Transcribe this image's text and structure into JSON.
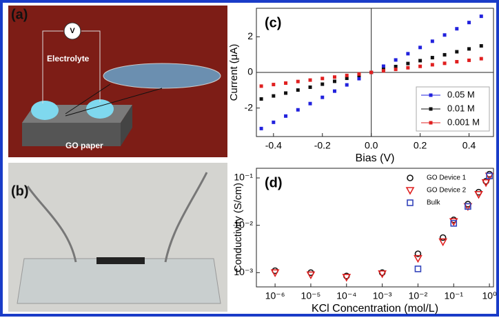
{
  "panels": {
    "a": {
      "label": "(a)",
      "voltmeter": "V",
      "electrolyte": "Electrolyte",
      "paper": "GO paper"
    },
    "b": {
      "label": "(b)"
    }
  },
  "chart_data": [
    {
      "type": "line",
      "annotation": "(c)",
      "x_label": "Bias (V)",
      "y_label": "Current (μA)",
      "x": [
        -0.45,
        -0.4,
        -0.35,
        -0.3,
        -0.25,
        -0.2,
        -0.15,
        -0.1,
        -0.05,
        0,
        0.05,
        0.1,
        0.15,
        0.2,
        0.25,
        0.3,
        0.35,
        0.4,
        0.45
      ],
      "series": [
        {
          "name": "0.05 M",
          "color": "#2222dd",
          "values": [
            -3.15,
            -2.8,
            -2.45,
            -2.1,
            -1.75,
            -1.4,
            -1.05,
            -0.7,
            -0.35,
            0,
            0.35,
            0.7,
            1.05,
            1.4,
            1.75,
            2.1,
            2.45,
            2.8,
            3.15
          ]
        },
        {
          "name": "0.01 M",
          "color": "#111111",
          "values": [
            -1.49,
            -1.32,
            -1.16,
            -0.99,
            -0.83,
            -0.66,
            -0.5,
            -0.33,
            -0.17,
            0,
            0.17,
            0.33,
            0.5,
            0.66,
            0.83,
            0.99,
            1.16,
            1.32,
            1.49
          ]
        },
        {
          "name": "0.001 M",
          "color": "#e02020",
          "values": [
            -0.77,
            -0.68,
            -0.6,
            -0.51,
            -0.43,
            -0.34,
            -0.26,
            -0.17,
            -0.09,
            0,
            0.09,
            0.17,
            0.26,
            0.34,
            0.43,
            0.51,
            0.6,
            0.68,
            0.77
          ]
        }
      ],
      "xlim": [
        -0.47,
        0.5
      ],
      "ylim": [
        -3.6,
        3.6
      ],
      "xticks": [
        -0.4,
        -0.2,
        {
          "value": 0,
          "label": "0.0"
        },
        0.2,
        0.4
      ],
      "yticks": [
        -2,
        0,
        2
      ],
      "legend": "lower right"
    },
    {
      "type": "scatter",
      "annotation": "(d)",
      "x_label": "KCl Concentration (mol/L)",
      "y_label": "Conductivity (S/cm)",
      "log_x": true,
      "log_y": true,
      "series": [
        {
          "name": "GO Device 1",
          "color": "#111111",
          "marker": "circle",
          "x": [
            1e-06,
            1e-05,
            0.0001,
            0.001,
            0.01,
            0.05,
            0.1,
            0.25,
            0.5,
            0.8,
            1
          ],
          "values": [
            0.0011,
            0.001,
            0.00085,
            0.001,
            0.0025,
            0.0055,
            0.013,
            0.028,
            0.05,
            0.085,
            0.12
          ]
        },
        {
          "name": "GO Device 2",
          "color": "#e02020",
          "marker": "triangle",
          "x": [
            1e-06,
            1e-05,
            0.0001,
            0.001,
            0.01,
            0.05,
            0.1,
            0.25,
            0.5,
            0.8,
            1
          ],
          "values": [
            0.001,
            0.0009,
            0.0008,
            0.00095,
            0.002,
            0.0045,
            0.012,
            0.025,
            0.045,
            0.08,
            0.11
          ]
        },
        {
          "name": "Bulk",
          "color": "#3344bb",
          "marker": "square",
          "x": [
            0.01,
            0.1,
            0.25,
            1
          ],
          "values": [
            0.0012,
            0.011,
            0.025,
            0.11
          ]
        }
      ],
      "xlim": [
        3e-07,
        1.3
      ],
      "ylim": [
        0.0005,
        0.16
      ],
      "xticks": [
        {
          "value": 1e-06,
          "label": "10⁻⁶"
        },
        {
          "value": 1e-05,
          "label": "10⁻⁵"
        },
        {
          "value": 0.0001,
          "label": "10⁻⁴"
        },
        {
          "value": 0.001,
          "label": "10⁻³"
        },
        {
          "value": 0.01,
          "label": "10⁻²"
        },
        {
          "value": 0.1,
          "label": "10⁻¹"
        },
        {
          "value": 1,
          "label": "10⁰"
        }
      ],
      "yticks": [
        {
          "value": 0.001,
          "label": "10⁻³"
        },
        {
          "value": 0.01,
          "label": "10⁻²"
        },
        {
          "value": 0.1,
          "label": "10⁻¹"
        }
      ],
      "legend": "upper right"
    }
  ]
}
